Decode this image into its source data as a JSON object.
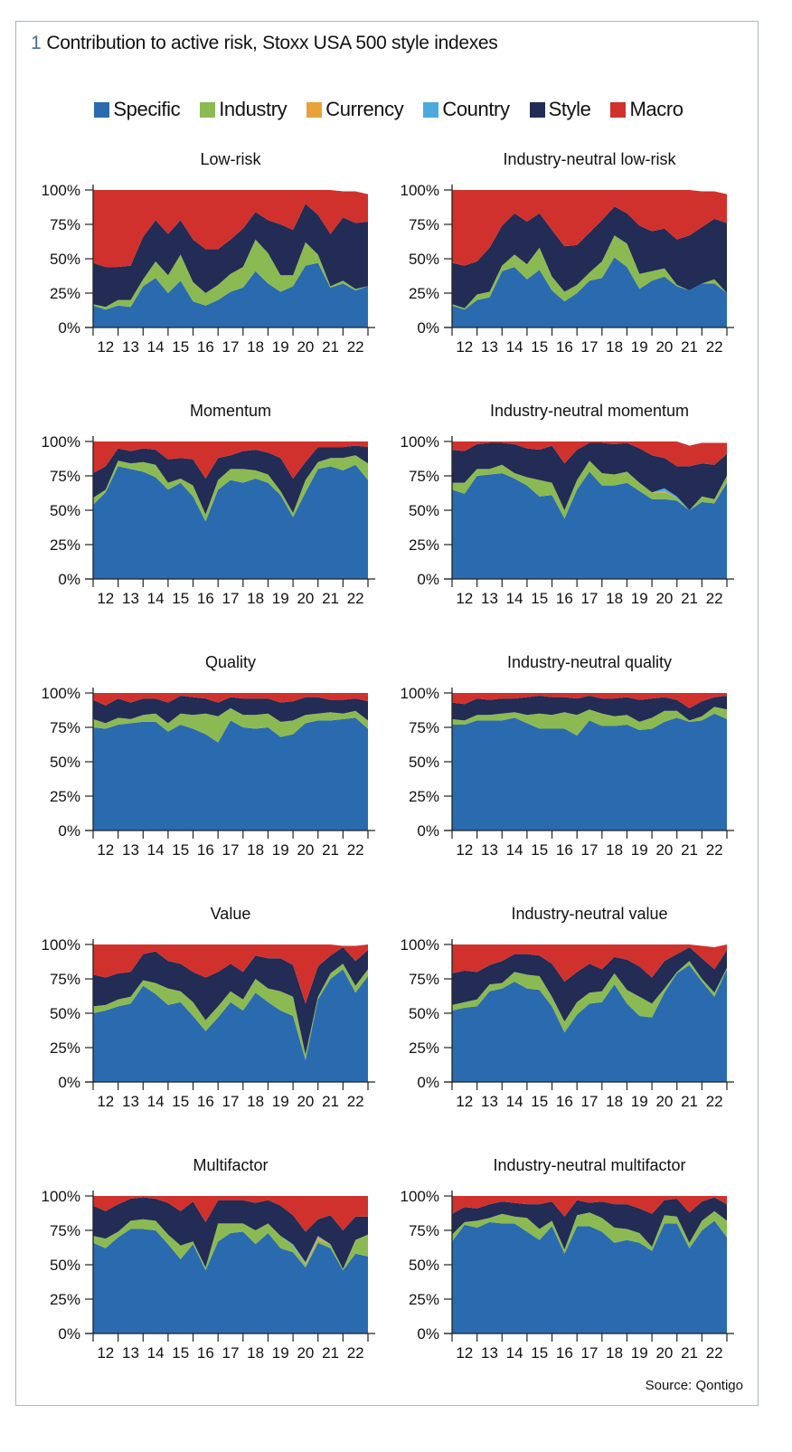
{
  "header": {
    "number": "1",
    "title": "Contribution to active risk, Stoxx USA 500 style indexes"
  },
  "legend": [
    {
      "label": "Specific",
      "color": "#2a6bb0"
    },
    {
      "label": "Industry",
      "color": "#8cba52"
    },
    {
      "label": "Currency",
      "color": "#e9a23b"
    },
    {
      "label": "Country",
      "color": "#4ba9de"
    },
    {
      "label": "Style",
      "color": "#222c55"
    },
    {
      "label": "Macro",
      "color": "#d1312c"
    }
  ],
  "source": "Source: Qontigo",
  "chart_data": {
    "type": "area",
    "stacked": true,
    "x": [
      2012.0,
      2012.5,
      2013.0,
      2013.5,
      2014.0,
      2014.5,
      2015.0,
      2015.5,
      2016.0,
      2016.5,
      2017.0,
      2017.5,
      2018.0,
      2018.5,
      2019.0,
      2019.5,
      2020.0,
      2020.5,
      2021.0,
      2021.5,
      2022.0,
      2022.5,
      2023.0
    ],
    "xlim": [
      2012,
      2023
    ],
    "ylim": [
      0,
      100
    ],
    "y_tick_labels": [
      "0%",
      "25%",
      "50%",
      "75%",
      "100%"
    ],
    "y_tick_values": [
      0,
      25,
      50,
      75,
      100
    ],
    "x_tick_labels": [
      "12",
      "13",
      "14",
      "15",
      "16",
      "17",
      "18",
      "19",
      "20",
      "21",
      "22"
    ],
    "series_order": [
      "Specific",
      "Industry",
      "Currency",
      "Country",
      "Style",
      "Macro"
    ],
    "note_zero": "Series not listed for a chart are zero",
    "charts": [
      {
        "title": "Low-risk",
        "series": {
          "Specific": [
            16,
            13,
            16,
            15,
            30,
            36,
            25,
            34,
            19,
            16,
            20,
            26,
            29,
            41,
            32,
            26,
            30,
            45,
            47,
            29,
            32,
            27,
            30
          ],
          "Industry": [
            1,
            2,
            4,
            5,
            5,
            12,
            13,
            19,
            14,
            9,
            11,
            13,
            15,
            23,
            22,
            12,
            8,
            17,
            6,
            1,
            2,
            1,
            0
          ],
          "Style": [
            30,
            29,
            24,
            25,
            31,
            30,
            30,
            25,
            31,
            32,
            26,
            25,
            28,
            20,
            24,
            37,
            33,
            28,
            29,
            38,
            46,
            48,
            47
          ],
          "Macro": [
            53,
            56,
            56,
            55,
            34,
            22,
            32,
            22,
            36,
            43,
            43,
            36,
            28,
            16,
            22,
            25,
            29,
            10,
            18,
            32,
            19,
            23,
            20
          ]
        }
      },
      {
        "title": "Industry-neutral low-risk",
        "series": {
          "Specific": [
            16,
            13,
            20,
            22,
            41,
            44,
            35,
            42,
            27,
            19,
            25,
            34,
            36,
            51,
            44,
            28,
            34,
            37,
            30,
            27,
            32,
            32,
            25
          ],
          "Industry": [
            1,
            1,
            4,
            4,
            4,
            9,
            11,
            16,
            10,
            7,
            6,
            6,
            12,
            16,
            17,
            11,
            7,
            6,
            1,
            0,
            0,
            3,
            0
          ],
          "Style": [
            30,
            31,
            24,
            32,
            29,
            30,
            31,
            25,
            34,
            33,
            29,
            29,
            30,
            21,
            22,
            35,
            29,
            29,
            33,
            40,
            41,
            44,
            51
          ],
          "Macro": [
            53,
            55,
            52,
            42,
            26,
            17,
            23,
            17,
            29,
            41,
            40,
            31,
            22,
            12,
            17,
            26,
            30,
            28,
            36,
            33,
            26,
            20,
            21
          ]
        }
      },
      {
        "title": "Momentum",
        "series": {
          "Specific": [
            54,
            63,
            82,
            80,
            78,
            74,
            65,
            70,
            60,
            42,
            65,
            72,
            70,
            73,
            70,
            61,
            45,
            63,
            80,
            82,
            79,
            83,
            72
          ],
          "Industry": [
            5,
            2,
            4,
            4,
            7,
            9,
            5,
            3,
            8,
            5,
            7,
            8,
            10,
            6,
            6,
            3,
            3,
            9,
            5,
            6,
            9,
            7,
            12
          ],
          "Style": [
            18,
            17,
            9,
            9,
            10,
            11,
            17,
            15,
            19,
            26,
            16,
            10,
            13,
            15,
            16,
            24,
            25,
            13,
            11,
            8,
            8,
            7,
            12
          ],
          "Macro": [
            23,
            18,
            5,
            7,
            5,
            6,
            13,
            12,
            13,
            27,
            12,
            10,
            7,
            6,
            8,
            12,
            27,
            15,
            4,
            4,
            4,
            3,
            4
          ]
        }
      },
      {
        "title": "Industry-neutral momentum",
        "series": {
          "Specific": [
            65,
            62,
            75,
            76,
            77,
            73,
            68,
            60,
            61,
            44,
            65,
            78,
            68,
            68,
            70,
            64,
            58,
            58,
            57,
            50,
            56,
            55,
            70
          ],
          "Industry": [
            5,
            8,
            5,
            4,
            6,
            4,
            6,
            12,
            9,
            6,
            7,
            8,
            9,
            8,
            8,
            6,
            5,
            5,
            2,
            0,
            4,
            3,
            5
          ],
          "Currency": [
            0,
            0,
            0,
            0,
            0,
            0,
            0,
            0,
            0,
            0,
            0,
            0,
            0,
            0,
            0,
            0,
            0,
            1,
            0,
            0,
            0,
            0,
            0
          ],
          "Country": [
            0,
            0,
            0,
            0,
            0,
            0,
            0,
            0,
            0,
            0,
            0,
            0,
            0,
            0,
            0,
            0,
            0,
            2,
            1,
            0,
            0,
            0,
            0
          ],
          "Style": [
            24,
            23,
            18,
            19,
            16,
            21,
            21,
            22,
            27,
            34,
            22,
            13,
            22,
            22,
            21,
            25,
            27,
            22,
            22,
            32,
            24,
            25,
            16
          ],
          "Macro": [
            6,
            7,
            2,
            1,
            1,
            2,
            5,
            6,
            3,
            16,
            6,
            1,
            1,
            2,
            1,
            5,
            10,
            12,
            18,
            15,
            15,
            16,
            8
          ]
        }
      },
      {
        "title": "Quality",
        "series": {
          "Specific": [
            75,
            74,
            77,
            78,
            79,
            79,
            72,
            77,
            74,
            70,
            64,
            80,
            75,
            74,
            75,
            68,
            70,
            78,
            80,
            80,
            81,
            82,
            74
          ],
          "Industry": [
            6,
            4,
            5,
            3,
            5,
            6,
            6,
            8,
            10,
            15,
            19,
            9,
            9,
            10,
            10,
            11,
            10,
            6,
            5,
            6,
            4,
            5,
            6
          ],
          "Style": [
            14,
            13,
            14,
            12,
            12,
            11,
            15,
            13,
            13,
            11,
            10,
            8,
            12,
            12,
            11,
            14,
            14,
            13,
            12,
            9,
            10,
            9,
            14
          ],
          "Macro": [
            5,
            9,
            4,
            7,
            4,
            4,
            7,
            2,
            3,
            4,
            7,
            3,
            4,
            4,
            4,
            7,
            6,
            3,
            3,
            5,
            5,
            4,
            6
          ]
        }
      },
      {
        "title": "Industry-neutral quality",
        "series": {
          "Specific": [
            77,
            77,
            80,
            80,
            80,
            82,
            78,
            74,
            74,
            74,
            69,
            80,
            76,
            76,
            77,
            73,
            74,
            79,
            82,
            79,
            80,
            85,
            81
          ],
          "Industry": [
            4,
            3,
            4,
            4,
            5,
            4,
            6,
            11,
            10,
            12,
            15,
            8,
            9,
            7,
            7,
            6,
            8,
            8,
            5,
            1,
            3,
            5,
            7
          ],
          "Style": [
            12,
            12,
            12,
            11,
            11,
            10,
            13,
            13,
            13,
            11,
            12,
            10,
            11,
            13,
            13,
            16,
            14,
            10,
            8,
            9,
            11,
            7,
            10
          ],
          "Macro": [
            7,
            8,
            4,
            5,
            4,
            4,
            3,
            2,
            3,
            3,
            4,
            2,
            4,
            4,
            3,
            5,
            4,
            3,
            5,
            11,
            6,
            3,
            2
          ]
        }
      },
      {
        "title": "Value",
        "series": {
          "Specific": [
            50,
            52,
            55,
            57,
            70,
            64,
            56,
            58,
            48,
            37,
            47,
            58,
            52,
            65,
            58,
            52,
            48,
            16,
            60,
            75,
            82,
            65,
            77
          ],
          "Industry": [
            5,
            4,
            5,
            5,
            4,
            8,
            12,
            8,
            10,
            8,
            8,
            8,
            8,
            10,
            10,
            14,
            14,
            4,
            2,
            4,
            4,
            5,
            5
          ],
          "Style": [
            23,
            20,
            19,
            18,
            19,
            23,
            20,
            20,
            22,
            31,
            25,
            20,
            20,
            17,
            22,
            24,
            23,
            37,
            22,
            13,
            12,
            18,
            14
          ],
          "Macro": [
            22,
            24,
            21,
            20,
            7,
            5,
            12,
            14,
            20,
            24,
            20,
            14,
            20,
            8,
            10,
            10,
            15,
            43,
            16,
            8,
            1,
            11,
            4
          ]
        }
      },
      {
        "title": "Industry-neutral value",
        "series": {
          "Specific": [
            52,
            54,
            55,
            66,
            68,
            73,
            68,
            67,
            55,
            36,
            49,
            57,
            58,
            71,
            57,
            48,
            47,
            65,
            79,
            85,
            73,
            62,
            82
          ],
          "Industry": [
            4,
            4,
            5,
            5,
            4,
            7,
            10,
            10,
            7,
            8,
            9,
            8,
            8,
            8,
            10,
            14,
            10,
            3,
            1,
            3,
            2,
            3,
            1
          ],
          "Style": [
            23,
            23,
            20,
            14,
            16,
            13,
            15,
            15,
            24,
            29,
            22,
            21,
            16,
            12,
            22,
            22,
            19,
            20,
            13,
            10,
            15,
            17,
            13
          ],
          "Macro": [
            21,
            19,
            20,
            15,
            12,
            7,
            7,
            8,
            14,
            27,
            20,
            14,
            18,
            9,
            11,
            16,
            24,
            12,
            7,
            2,
            9,
            16,
            4
          ]
        }
      },
      {
        "title": "Multifactor",
        "series": {
          "Specific": [
            66,
            62,
            70,
            76,
            76,
            75,
            65,
            54,
            65,
            46,
            67,
            73,
            74,
            65,
            73,
            62,
            59,
            48,
            66,
            62,
            46,
            58,
            56
          ],
          "Industry": [
            5,
            7,
            4,
            6,
            7,
            7,
            7,
            10,
            2,
            2,
            13,
            7,
            6,
            10,
            7,
            9,
            5,
            2,
            2,
            3,
            1,
            10,
            16
          ],
          "Currency": [
            0,
            0,
            0,
            0,
            0,
            0,
            0,
            0,
            0,
            0,
            0,
            0,
            0,
            0,
            0,
            0,
            0,
            1,
            2,
            0,
            0,
            0,
            0
          ],
          "Country": [
            0,
            0,
            0,
            0,
            0,
            0,
            0,
            0,
            0,
            0,
            0,
            0,
            0,
            0,
            0,
            0,
            1,
            1,
            1,
            0,
            0,
            0,
            0
          ],
          "Style": [
            22,
            20,
            20,
            16,
            16,
            16,
            23,
            25,
            29,
            33,
            17,
            17,
            17,
            20,
            17,
            22,
            21,
            22,
            12,
            21,
            28,
            17,
            13
          ],
          "Macro": [
            7,
            11,
            6,
            2,
            1,
            2,
            5,
            11,
            4,
            19,
            3,
            3,
            3,
            5,
            3,
            7,
            14,
            26,
            17,
            14,
            25,
            15,
            15
          ]
        }
      },
      {
        "title": "Industry-neutral multifactor",
        "series": {
          "Specific": [
            67,
            79,
            77,
            81,
            80,
            80,
            74,
            68,
            78,
            58,
            78,
            78,
            74,
            66,
            68,
            66,
            60,
            80,
            80,
            62,
            75,
            82,
            70
          ],
          "Industry": [
            5,
            2,
            5,
            3,
            7,
            5,
            10,
            8,
            4,
            3,
            8,
            10,
            10,
            11,
            8,
            7,
            3,
            6,
            5,
            4,
            7,
            7,
            12
          ],
          "Style": [
            15,
            11,
            9,
            10,
            9,
            10,
            10,
            18,
            14,
            24,
            11,
            7,
            12,
            17,
            18,
            18,
            24,
            11,
            13,
            22,
            14,
            10,
            12
          ],
          "Macro": [
            13,
            8,
            9,
            6,
            4,
            5,
            6,
            6,
            4,
            15,
            3,
            5,
            4,
            6,
            6,
            9,
            13,
            3,
            2,
            12,
            4,
            1,
            6
          ]
        }
      }
    ]
  }
}
